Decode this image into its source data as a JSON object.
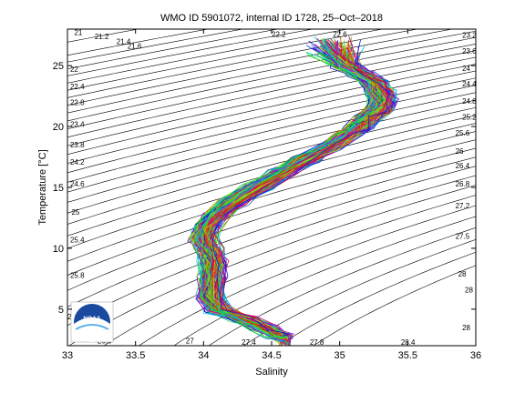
{
  "chart_data": {
    "type": "line",
    "title": "WMO ID 5901072, internal ID 1728, 25–Oct–2018",
    "xlabel": "Salinity",
    "ylabel": "Temperature [°C]",
    "xlim": [
      33,
      36
    ],
    "ylim": [
      2,
      28
    ],
    "xticks": [
      33,
      33.5,
      34,
      34.5,
      35,
      35.5,
      36
    ],
    "xtick_labels": [
      "33",
      "33.5",
      "34",
      "34.5",
      "35",
      "35.5",
      "36"
    ],
    "yticks": [
      5,
      10,
      15,
      20,
      25
    ],
    "ytick_labels": [
      "5",
      "10",
      "15",
      "20",
      "25"
    ],
    "grid": false,
    "density_isopleths": {
      "sigma_values": [
        20.6,
        21,
        21.2,
        21.4,
        21.6,
        21.8,
        22,
        22.2,
        22.4,
        22.6,
        22.8,
        23,
        23.2,
        23.4,
        23.6,
        23.8,
        24,
        24.2,
        24.4,
        24.6,
        24.8,
        25,
        25.2,
        25.4,
        25.6,
        25.8,
        26,
        26.2,
        26.4,
        26.6,
        26.8,
        27,
        27.2,
        27.4,
        27.6,
        27.8,
        28
      ],
      "labels": [
        {
          "text": "21",
          "s": 33.05,
          "t": 27.75
        },
        {
          "text": "21.2",
          "s": 33.2,
          "t": 27.4
        },
        {
          "text": "21.4",
          "s": 33.36,
          "t": 27.0
        },
        {
          "text": "21.6",
          "s": 33.44,
          "t": 26.6
        },
        {
          "text": "22.2",
          "s": 34.5,
          "t": 27.6
        },
        {
          "text": "22.6",
          "s": 34.95,
          "t": 27.6
        },
        {
          "text": "23.2",
          "s": 35.9,
          "t": 27.5
        },
        {
          "text": "23.6",
          "s": 35.9,
          "t": 26.2
        },
        {
          "text": "24",
          "s": 35.9,
          "t": 24.8
        },
        {
          "text": "24.4",
          "s": 35.9,
          "t": 23.5
        },
        {
          "text": "24.8",
          "s": 35.9,
          "t": 22.1
        },
        {
          "text": "25.2",
          "s": 35.9,
          "t": 20.8
        },
        {
          "text": "25.6",
          "s": 35.85,
          "t": 19.5
        },
        {
          "text": "26",
          "s": 35.85,
          "t": 18.0
        },
        {
          "text": "26.4",
          "s": 35.85,
          "t": 16.8
        },
        {
          "text": "26.8",
          "s": 35.85,
          "t": 15.3
        },
        {
          "text": "27.2",
          "s": 35.85,
          "t": 13.5
        },
        {
          "text": "27.5",
          "s": 35.85,
          "t": 11.0
        },
        {
          "text": "28",
          "s": 35.87,
          "t": 7.9
        },
        {
          "text": "28",
          "s": 35.92,
          "t": 6.6
        },
        {
          "text": "28",
          "s": 35.9,
          "t": 3.5
        },
        {
          "text": "22",
          "s": 33.02,
          "t": 24.7
        },
        {
          "text": "22.4",
          "s": 33.02,
          "t": 23.3
        },
        {
          "text": "22.8",
          "s": 33.02,
          "t": 22.0
        },
        {
          "text": "23.4",
          "s": 33.02,
          "t": 20.2
        },
        {
          "text": "23.8",
          "s": 33.02,
          "t": 18.5
        },
        {
          "text": "24.2",
          "s": 33.02,
          "t": 17.1
        },
        {
          "text": "24.6",
          "s": 33.02,
          "t": 15.3
        },
        {
          "text": "25",
          "s": 33.03,
          "t": 13.0
        },
        {
          "text": "25.4",
          "s": 33.02,
          "t": 10.7
        },
        {
          "text": "25.8",
          "s": 33.02,
          "t": 7.8
        },
        {
          "text": "26",
          "s": 33.0,
          "t": 4.4
        },
        {
          "text": "26.6",
          "s": 33.22,
          "t": 2.4
        },
        {
          "text": "27",
          "s": 33.87,
          "t": 2.4
        },
        {
          "text": "27.4",
          "s": 34.28,
          "t": 2.3
        },
        {
          "text": "27.8",
          "s": 34.78,
          "t": 2.3
        },
        {
          "text": "28.4",
          "s": 35.45,
          "t": 2.3
        }
      ]
    },
    "profiles": {
      "count": 160,
      "mean_path": [
        [
          34.62,
          2.0
        ],
        [
          34.55,
          2.8
        ],
        [
          34.45,
          3.5
        ],
        [
          34.3,
          4.2
        ],
        [
          34.12,
          4.9
        ],
        [
          34.05,
          6.0
        ],
        [
          34.06,
          7.5
        ],
        [
          34.07,
          8.8
        ],
        [
          34.05,
          9.8
        ],
        [
          34.0,
          10.8
        ],
        [
          34.02,
          11.8
        ],
        [
          34.1,
          12.7
        ],
        [
          34.22,
          13.8
        ],
        [
          34.4,
          15.0
        ],
        [
          34.58,
          16.2
        ],
        [
          34.75,
          17.3
        ],
        [
          34.92,
          18.3
        ],
        [
          35.05,
          19.2
        ],
        [
          35.15,
          20.0
        ],
        [
          35.2,
          20.7
        ],
        [
          35.28,
          21.3
        ],
        [
          35.32,
          22.0
        ],
        [
          35.3,
          22.8
        ],
        [
          35.25,
          23.6
        ],
        [
          35.15,
          24.3
        ],
        [
          35.05,
          25.0
        ],
        [
          34.95,
          25.8
        ]
      ]
    }
  },
  "logo": {
    "text": "NOAA"
  }
}
